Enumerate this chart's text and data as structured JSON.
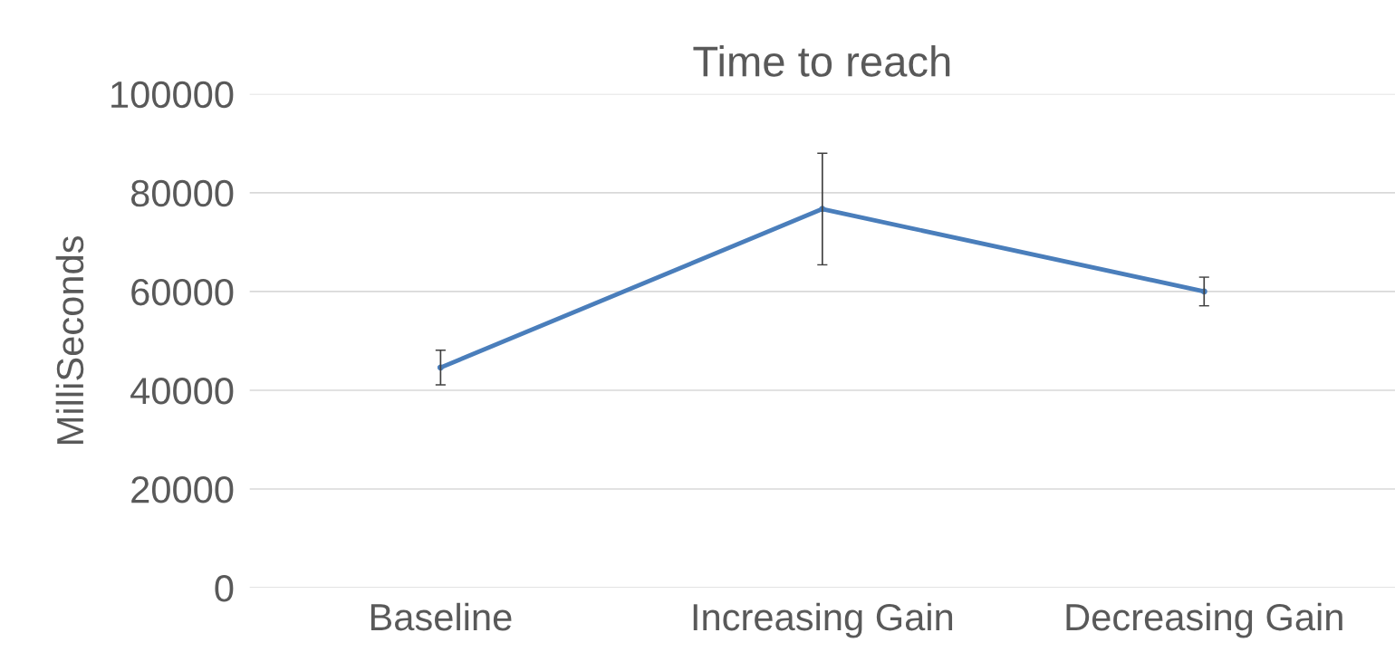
{
  "chart_data": {
    "type": "line",
    "title": "Time to reach",
    "ylabel": "MilliSeconds",
    "categories": [
      "Baseline",
      "Increasing Gain",
      "Decreasing Gain"
    ],
    "series": [
      {
        "color": "#4a7ebb",
        "values": [
          44600,
          76700,
          60000
        ],
        "errors": [
          3500,
          11300,
          2900
        ]
      }
    ],
    "ylim": [
      0,
      100000
    ],
    "yticks": [
      0,
      20000,
      40000,
      60000,
      80000,
      100000
    ],
    "grid": "y",
    "marker": "circle",
    "line_style": "solid",
    "legend": false
  }
}
